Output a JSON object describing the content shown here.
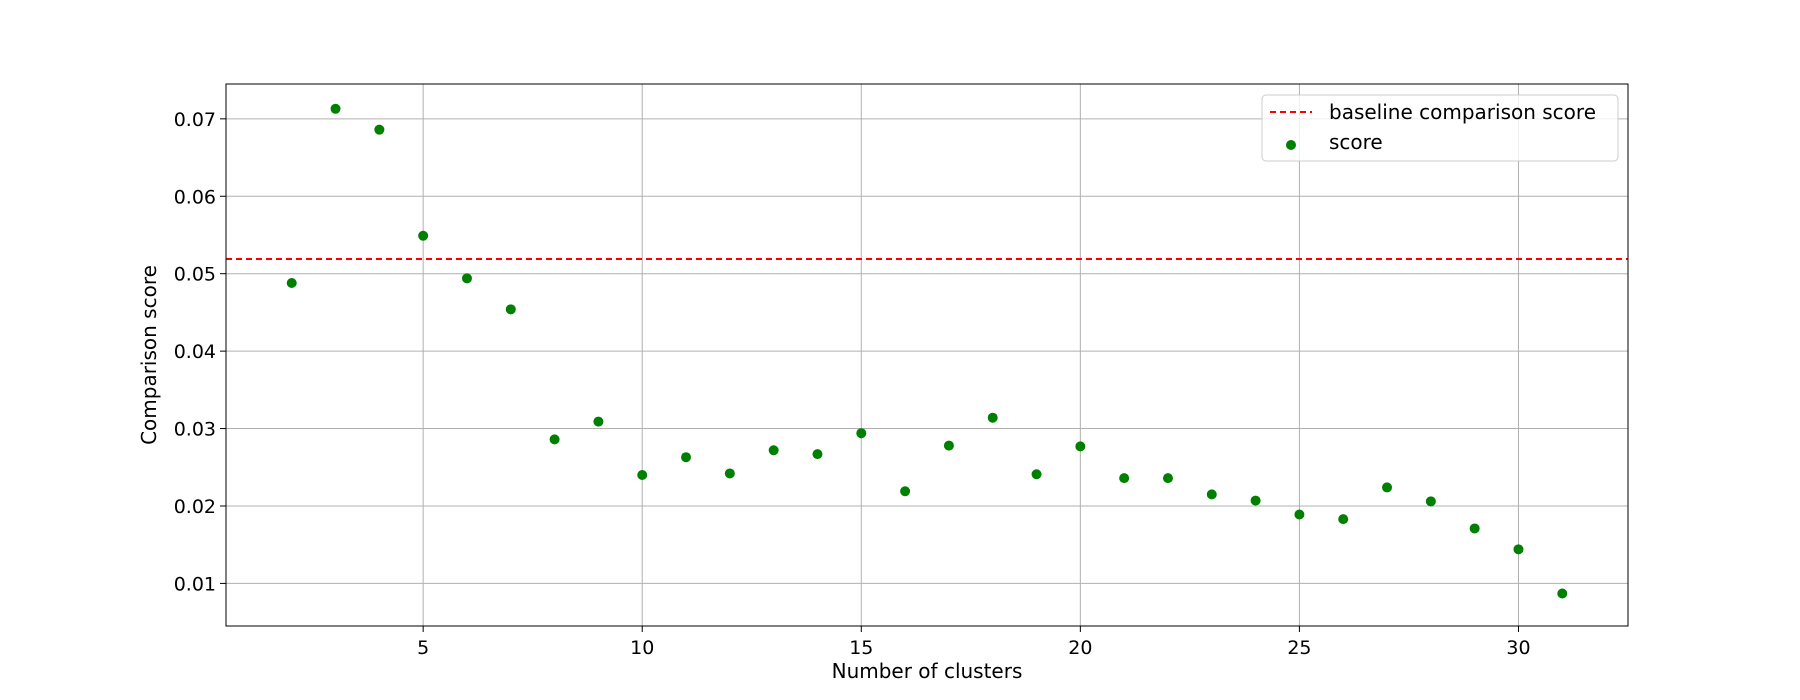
{
  "chart_data": {
    "type": "scatter",
    "title": "",
    "xlabel": "Number of clusters",
    "ylabel": "Comparison score",
    "xlim": [
      0.5,
      32.5
    ],
    "ylim": [
      0.0045,
      0.0745
    ],
    "xticks": [
      5,
      10,
      15,
      20,
      25,
      30
    ],
    "yticks": [
      0.01,
      0.02,
      0.03,
      0.04,
      0.05,
      0.06,
      0.07
    ],
    "grid": true,
    "legend_position": "top-right",
    "series": [
      {
        "name": "score",
        "kind": "scatter",
        "color": "#008000",
        "x": [
          2,
          3,
          4,
          5,
          6,
          7,
          8,
          9,
          10,
          11,
          12,
          13,
          14,
          15,
          16,
          17,
          18,
          19,
          20,
          21,
          22,
          23,
          24,
          25,
          26,
          27,
          28,
          29,
          30,
          31
        ],
        "y": [
          0.0488,
          0.0713,
          0.0686,
          0.0549,
          0.0494,
          0.0454,
          0.0286,
          0.0309,
          0.024,
          0.0263,
          0.0242,
          0.0272,
          0.0267,
          0.0294,
          0.0219,
          0.0278,
          0.0314,
          0.0241,
          0.0277,
          0.0236,
          0.0236,
          0.0215,
          0.0207,
          0.0189,
          0.0183,
          0.0224,
          0.0206,
          0.0171,
          0.0144,
          0.0087
        ]
      }
    ],
    "reference_lines": [
      {
        "name": "baseline comparison score",
        "orientation": "horizontal",
        "y": 0.0519,
        "color": "#ff0000",
        "style": "dashed"
      }
    ]
  }
}
